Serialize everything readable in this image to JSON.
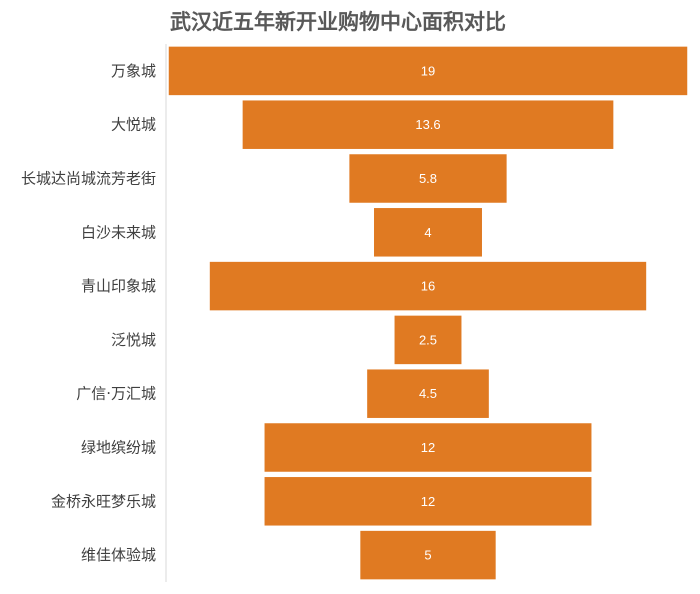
{
  "chart_data": {
    "type": "bar",
    "orientation": "horizontal",
    "style": "funnel",
    "title": "武汉近五年新开业购物中心面积对比",
    "xlabel": "",
    "ylabel": "",
    "categories": [
      "万象城",
      "大悦城",
      "长城达尚城流芳老街",
      "白沙未来城",
      "青山印象城",
      "泛悦城",
      "广信·万汇城",
      "绿地缤纷城",
      "金桥永旺梦乐城",
      "维佳体验城"
    ],
    "values": [
      19,
      13.6,
      5.8,
      4,
      16,
      2.5,
      4.5,
      12,
      12,
      5
    ],
    "value_labels": [
      "19",
      "13.6",
      "5.8",
      "4",
      "16",
      "2.5",
      "4.5",
      "12",
      "12",
      "5"
    ],
    "xlim": [
      0,
      19
    ],
    "grid": false,
    "legend": "none",
    "colors": {
      "bar": "#E07A22",
      "bar_edge": "#FFFFFF",
      "label_text": "#FFFFFF",
      "category_text": "#404040",
      "title_text": "#595959",
      "axis": "#D9D9D9"
    }
  }
}
